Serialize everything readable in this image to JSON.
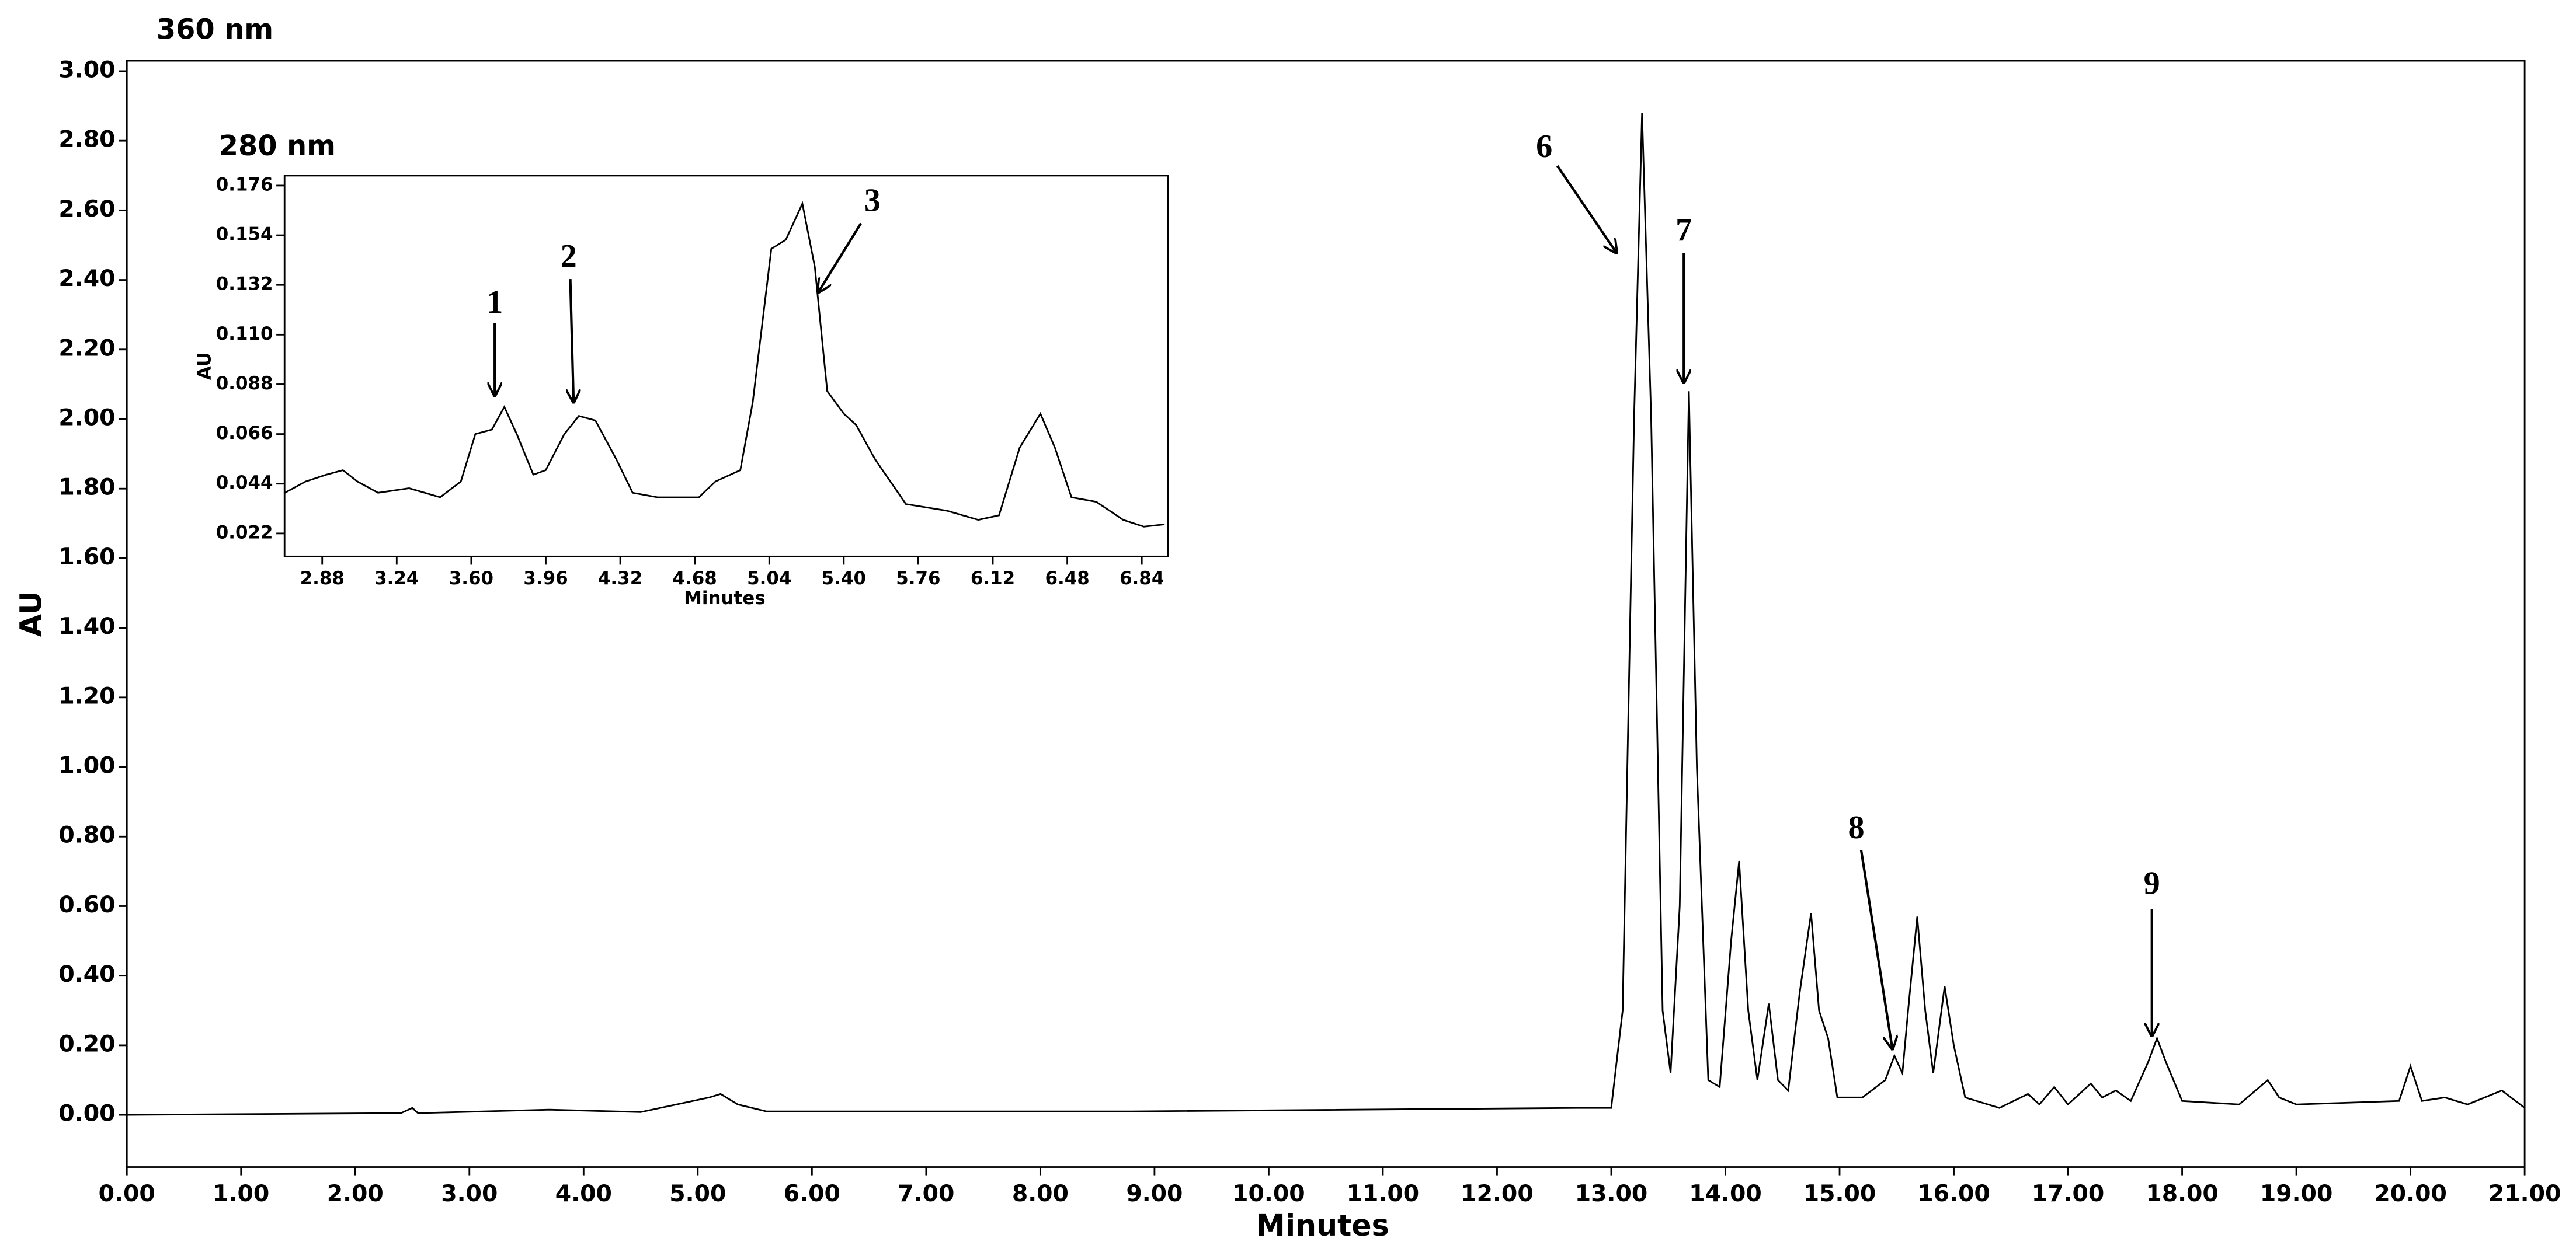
{
  "chart_data": [
    {
      "type": "line",
      "title": "360 nm",
      "x_label": "Minutes",
      "y_label": "AU",
      "color": "#000000",
      "x": [
        0,
        2.4,
        2.5,
        2.55,
        3.7,
        4.5,
        5.1,
        5.2,
        5.35,
        5.6,
        8.8,
        12.7,
        13.0,
        13.1,
        13.2,
        13.27,
        13.35,
        13.45,
        13.52,
        13.6,
        13.68,
        13.75,
        13.85,
        13.95,
        14.05,
        14.12,
        14.2,
        14.28,
        14.38,
        14.46,
        14.55,
        14.65,
        14.75,
        14.82,
        14.9,
        14.98,
        15.2,
        15.4,
        15.48,
        15.55,
        15.6,
        15.68,
        15.75,
        15.82,
        15.92,
        16.0,
        16.1,
        16.4,
        16.65,
        16.75,
        16.88,
        17.0,
        17.2,
        17.3,
        17.42,
        17.55,
        17.7,
        17.78,
        17.86,
        18.0,
        18.5,
        18.75,
        18.85,
        19.0,
        19.9,
        20.0,
        20.1,
        20.3,
        20.5,
        20.8,
        21.0
      ],
      "values": [
        0,
        0.005,
        0.02,
        0.005,
        0.015,
        0.008,
        0.05,
        0.06,
        0.03,
        0.01,
        0.01,
        0.02,
        0.02,
        0.3,
        2.0,
        2.88,
        2.0,
        0.3,
        0.12,
        0.6,
        2.08,
        1.0,
        0.1,
        0.08,
        0.5,
        0.73,
        0.3,
        0.1,
        0.32,
        0.1,
        0.07,
        0.35,
        0.58,
        0.3,
        0.22,
        0.05,
        0.05,
        0.1,
        0.17,
        0.12,
        0.3,
        0.57,
        0.3,
        0.12,
        0.37,
        0.2,
        0.05,
        0.02,
        0.06,
        0.03,
        0.08,
        0.03,
        0.09,
        0.05,
        0.07,
        0.04,
        0.15,
        0.22,
        0.15,
        0.04,
        0.03,
        0.1,
        0.05,
        0.03,
        0.04,
        0.14,
        0.04,
        0.05,
        0.03,
        0.07,
        0.02
      ],
      "xlim": [
        0,
        21
      ],
      "ylim": [
        -0.15,
        3.03
      ],
      "xticks": [
        {
          "value": 0,
          "label": "0.00"
        },
        {
          "value": 1,
          "label": "1.00"
        },
        {
          "value": 2,
          "label": "2.00"
        },
        {
          "value": 3,
          "label": "3.00"
        },
        {
          "value": 4,
          "label": "4.00"
        },
        {
          "value": 5,
          "label": "5.00"
        },
        {
          "value": 6,
          "label": "6.00"
        },
        {
          "value": 7,
          "label": "7.00"
        },
        {
          "value": 8,
          "label": "8.00"
        },
        {
          "value": 9,
          "label": "9.00"
        },
        {
          "value": 10,
          "label": "10.00"
        },
        {
          "value": 11,
          "label": "11.00"
        },
        {
          "value": 12,
          "label": "12.00"
        },
        {
          "value": 13,
          "label": "13.00"
        },
        {
          "value": 14,
          "label": "14.00"
        },
        {
          "value": 15,
          "label": "15.00"
        },
        {
          "value": 16,
          "label": "16.00"
        },
        {
          "value": 17,
          "label": "17.00"
        },
        {
          "value": 18,
          "label": "18.00"
        },
        {
          "value": 19,
          "label": "19.00"
        },
        {
          "value": 20,
          "label": "20.00"
        },
        {
          "value": 21,
          "label": "21.00"
        }
      ],
      "yticks": [
        {
          "value": 0,
          "label": "0.00"
        },
        {
          "value": 0.2,
          "label": "0.20"
        },
        {
          "value": 0.4,
          "label": "0.40"
        },
        {
          "value": 0.6,
          "label": "0.60"
        },
        {
          "value": 0.8,
          "label": "0.80"
        },
        {
          "value": 1.0,
          "label": "1.00"
        },
        {
          "value": 1.2,
          "label": "1.20"
        },
        {
          "value": 1.4,
          "label": "1.40"
        },
        {
          "value": 1.6,
          "label": "1.60"
        },
        {
          "value": 1.8,
          "label": "1.80"
        },
        {
          "value": 2.0,
          "label": "2.00"
        },
        {
          "value": 2.2,
          "label": "2.20"
        },
        {
          "value": 2.4,
          "label": "2.40"
        },
        {
          "value": 2.6,
          "label": "2.60"
        },
        {
          "value": 2.8,
          "label": "2.80"
        },
        {
          "value": 3.0,
          "label": "3.00"
        }
      ],
      "annotations": [
        {
          "text": "6"
        },
        {
          "text": "7"
        },
        {
          "text": "8"
        },
        {
          "text": "9"
        }
      ]
    },
    {
      "type": "line",
      "title": "280 nm",
      "x_label": "Minutes",
      "y_label": "AU",
      "color": "#000000",
      "x": [
        2.7,
        2.8,
        2.9,
        2.98,
        3.05,
        3.15,
        3.3,
        3.45,
        3.55,
        3.62,
        3.7,
        3.76,
        3.82,
        3.9,
        3.96,
        4.05,
        4.12,
        4.2,
        4.3,
        4.38,
        4.5,
        4.7,
        4.78,
        4.9,
        4.96,
        5.05,
        5.12,
        5.2,
        5.26,
        5.32,
        5.4,
        5.46,
        5.55,
        5.7,
        5.9,
        6.05,
        6.15,
        6.25,
        6.35,
        6.42,
        6.5,
        6.62,
        6.75,
        6.85,
        6.95
      ],
      "values": [
        0.04,
        0.045,
        0.048,
        0.05,
        0.045,
        0.04,
        0.042,
        0.038,
        0.045,
        0.066,
        0.068,
        0.078,
        0.066,
        0.048,
        0.05,
        0.066,
        0.074,
        0.072,
        0.055,
        0.04,
        0.038,
        0.038,
        0.045,
        0.05,
        0.08,
        0.148,
        0.152,
        0.168,
        0.14,
        0.085,
        0.075,
        0.07,
        0.055,
        0.035,
        0.032,
        0.028,
        0.03,
        0.06,
        0.075,
        0.06,
        0.038,
        0.036,
        0.028,
        0.025,
        0.026
      ],
      "xlim": [
        2.698,
        6.967
      ],
      "ylim": [
        0.0118,
        0.1804
      ],
      "xticks": [
        2.88,
        3.24,
        {
          "value": 3.6,
          "label": "3.60"
        },
        3.96,
        4.32,
        4.68,
        5.04,
        {
          "value": 5.4,
          "label": "5.40"
        },
        5.76,
        6.12,
        6.48,
        6.84
      ],
      "yticks": [
        0.022,
        0.044,
        0.066,
        0.088,
        {
          "value": 0.11,
          "label": "0.110"
        },
        0.132,
        0.154,
        0.176
      ],
      "annotations": [
        {
          "text": "1"
        },
        {
          "text": "2"
        },
        {
          "text": "3"
        }
      ]
    }
  ]
}
